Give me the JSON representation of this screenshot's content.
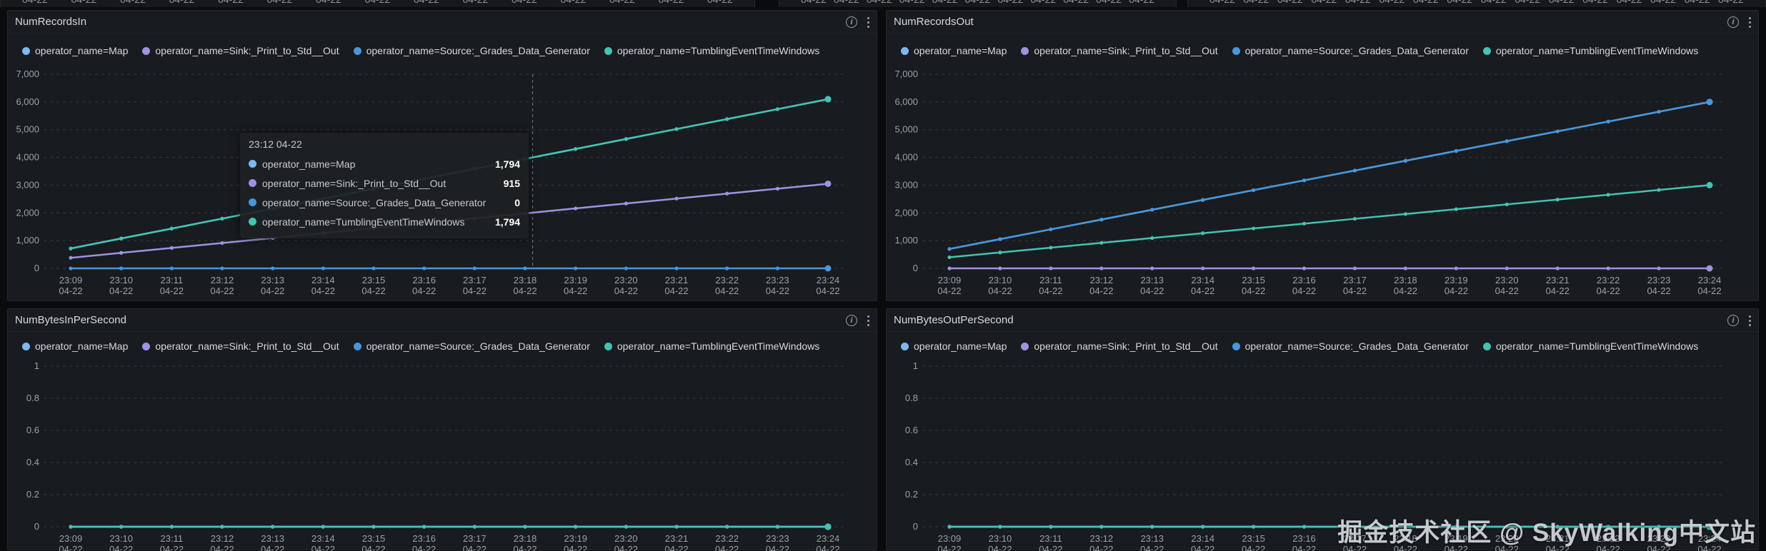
{
  "app": {
    "watermark": "掘金技术社区 @ SkyWalking中文站"
  },
  "top_strip": {
    "clipped_label": "04-22",
    "segment_label_counts": [
      15,
      11,
      16
    ]
  },
  "panel_header": {
    "info_icon": "i"
  },
  "legend": {
    "items": [
      {
        "label": "operator_name=Map",
        "color": "#7db8f0"
      },
      {
        "label": "operator_name=Sink:_Print_to_Std__Out",
        "color": "#9d93e2"
      },
      {
        "label": "operator_name=Source:_Grades_Data_Generator",
        "color": "#4896dc"
      },
      {
        "label": "operator_name=TumblingEventTimeWindows",
        "color": "#44c2b2"
      }
    ]
  },
  "tooltip": {
    "time": "23:12 04-22",
    "rows": [
      {
        "label": "operator_name=Map",
        "value": "1,794",
        "color": "#7db8f0"
      },
      {
        "label": "operator_name=Sink:_Print_to_Std__Out",
        "value": "915",
        "color": "#9d93e2"
      },
      {
        "label": "operator_name=Source:_Grades_Data_Generator",
        "value": "0",
        "color": "#4896dc"
      },
      {
        "label": "operator_name=TumblingEventTimeWindows",
        "value": "1,794",
        "color": "#44c2b2"
      }
    ]
  },
  "chart_data": [
    {
      "type": "line",
      "title": "NumRecordsIn",
      "x": [
        "23:09",
        "23:10",
        "23:11",
        "23:12",
        "23:13",
        "23:14",
        "23:15",
        "23:16",
        "23:17",
        "23:18",
        "23:19",
        "23:20",
        "23:21",
        "23:22",
        "23:23",
        "23:24"
      ],
      "x_sublabel": "04-22",
      "ylim": [
        0,
        7000
      ],
      "y_ticks": [
        0,
        1000,
        2000,
        3000,
        4000,
        5000,
        6000,
        7000
      ],
      "grid": true,
      "legend_position": "top",
      "crosshair_x_index": 9.15,
      "series": [
        {
          "name": "operator_name=Map",
          "color": "#7db8f0",
          "values": [
            718,
            1077,
            1435,
            1794,
            2153,
            2512,
            2870,
            3229,
            3588,
            3947,
            4305,
            4664,
            5023,
            5382,
            5741,
            6100
          ]
        },
        {
          "name": "operator_name=Sink:_Print_to_Std__Out",
          "color": "#9d93e2",
          "values": [
            381,
            559,
            737,
            915,
            1093,
            1271,
            1449,
            1627,
            1805,
            1983,
            2161,
            2339,
            2517,
            2695,
            2873,
            3050
          ]
        },
        {
          "name": "operator_name=Source:_Grades_Data_Generator",
          "color": "#4896dc",
          "values": [
            0,
            0,
            0,
            0,
            0,
            0,
            0,
            0,
            0,
            0,
            0,
            0,
            0,
            0,
            0,
            0
          ]
        },
        {
          "name": "operator_name=TumblingEventTimeWindows",
          "color": "#44c2b2",
          "values": [
            718,
            1077,
            1435,
            1794,
            2153,
            2512,
            2870,
            3229,
            3588,
            3947,
            4305,
            4664,
            5023,
            5382,
            5741,
            6100
          ]
        }
      ]
    },
    {
      "type": "line",
      "title": "NumRecordsOut",
      "x": [
        "23:09",
        "23:10",
        "23:11",
        "23:12",
        "23:13",
        "23:14",
        "23:15",
        "23:16",
        "23:17",
        "23:18",
        "23:19",
        "23:20",
        "23:21",
        "23:22",
        "23:23",
        "23:24"
      ],
      "x_sublabel": "04-22",
      "ylim": [
        0,
        7000
      ],
      "y_ticks": [
        0,
        1000,
        2000,
        3000,
        4000,
        5000,
        6000,
        7000
      ],
      "grid": true,
      "legend_position": "top",
      "series": [
        {
          "name": "operator_name=Map",
          "color": "#7db8f0",
          "values": [
            700,
            1053,
            1407,
            1760,
            2113,
            2467,
            2820,
            3173,
            3527,
            3880,
            4233,
            4587,
            4940,
            5293,
            5647,
            6000
          ]
        },
        {
          "name": "operator_name=Sink:_Print_to_Std__Out",
          "color": "#9d93e2",
          "values": [
            0,
            0,
            0,
            0,
            0,
            0,
            0,
            0,
            0,
            0,
            0,
            0,
            0,
            0,
            0,
            0
          ]
        },
        {
          "name": "operator_name=Source:_Grades_Data_Generator",
          "color": "#4896dc",
          "values": [
            700,
            1053,
            1407,
            1760,
            2113,
            2467,
            2820,
            3173,
            3527,
            3880,
            4233,
            4587,
            4940,
            5293,
            5647,
            6000
          ]
        },
        {
          "name": "operator_name=TumblingEventTimeWindows",
          "color": "#44c2b2",
          "values": [
            400,
            573,
            747,
            920,
            1093,
            1267,
            1440,
            1613,
            1787,
            1960,
            2133,
            2307,
            2480,
            2653,
            2827,
            3000
          ]
        }
      ]
    },
    {
      "type": "line",
      "title": "NumBytesInPerSecond",
      "x": [
        "23:09",
        "23:10",
        "23:11",
        "23:12",
        "23:13",
        "23:14",
        "23:15",
        "23:16",
        "23:17",
        "23:18",
        "23:19",
        "23:20",
        "23:21",
        "23:22",
        "23:23",
        "23:24"
      ],
      "x_sublabel": "04-22",
      "ylim": [
        0,
        1
      ],
      "y_ticks": [
        0,
        0.2,
        0.4,
        0.6,
        0.8,
        1
      ],
      "grid": true,
      "legend_position": "top",
      "series": [
        {
          "name": "operator_name=Map",
          "color": "#7db8f0",
          "values": [
            0,
            0,
            0,
            0,
            0,
            0,
            0,
            0,
            0,
            0,
            0,
            0,
            0,
            0,
            0,
            0
          ]
        },
        {
          "name": "operator_name=Sink:_Print_to_Std__Out",
          "color": "#9d93e2",
          "values": [
            0,
            0,
            0,
            0,
            0,
            0,
            0,
            0,
            0,
            0,
            0,
            0,
            0,
            0,
            0,
            0
          ]
        },
        {
          "name": "operator_name=Source:_Grades_Data_Generator",
          "color": "#4896dc",
          "values": [
            0,
            0,
            0,
            0,
            0,
            0,
            0,
            0,
            0,
            0,
            0,
            0,
            0,
            0,
            0,
            0
          ]
        },
        {
          "name": "operator_name=TumblingEventTimeWindows",
          "color": "#44c2b2",
          "values": [
            0,
            0,
            0,
            0,
            0,
            0,
            0,
            0,
            0,
            0,
            0,
            0,
            0,
            0,
            0,
            0
          ]
        }
      ]
    },
    {
      "type": "line",
      "title": "NumBytesOutPerSecond",
      "x": [
        "23:09",
        "23:10",
        "23:11",
        "23:12",
        "23:13",
        "23:14",
        "23:15",
        "23:16",
        "23:17",
        "23:18",
        "23:19",
        "23:20",
        "23:21",
        "23:22",
        "23:23",
        "23:24"
      ],
      "x_sublabel": "04-22",
      "ylim": [
        0,
        1
      ],
      "y_ticks": [
        0,
        0.2,
        0.4,
        0.6,
        0.8,
        1
      ],
      "grid": true,
      "legend_position": "top",
      "series": [
        {
          "name": "operator_name=Map",
          "color": "#7db8f0",
          "values": [
            0,
            0,
            0,
            0,
            0,
            0,
            0,
            0,
            0,
            0,
            0,
            0,
            0,
            0,
            0,
            0
          ]
        },
        {
          "name": "operator_name=Sink:_Print_to_Std__Out",
          "color": "#9d93e2",
          "values": [
            0,
            0,
            0,
            0,
            0,
            0,
            0,
            0,
            0,
            0,
            0,
            0,
            0,
            0,
            0,
            0
          ]
        },
        {
          "name": "operator_name=Source:_Grades_Data_Generator",
          "color": "#4896dc",
          "values": [
            0,
            0,
            0,
            0,
            0,
            0,
            0,
            0,
            0,
            0,
            0,
            0,
            0,
            0,
            0,
            0
          ]
        },
        {
          "name": "operator_name=TumblingEventTimeWindows",
          "color": "#44c2b2",
          "values": [
            0,
            0,
            0,
            0,
            0,
            0,
            0,
            0,
            0,
            0,
            0,
            0,
            0,
            0,
            0,
            0
          ]
        }
      ]
    }
  ]
}
